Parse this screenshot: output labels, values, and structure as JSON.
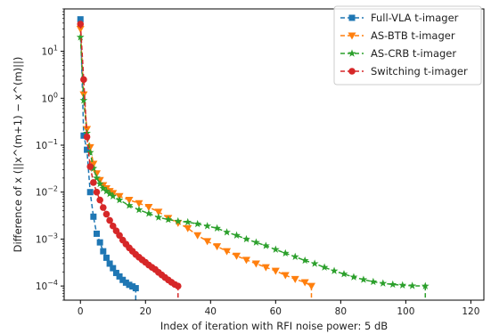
{
  "chart_data": {
    "type": "line",
    "xlabel": "Index of iteration with RFI noise power: 5 dB",
    "ylabel": "Difference of x (||x^(m+1) − x^(m)||)",
    "xlim": [
      -5,
      124
    ],
    "ylim": [
      5e-05,
      80
    ],
    "yscale": "log",
    "xticks": [
      0,
      20,
      40,
      60,
      80,
      100,
      120
    ],
    "yticks": [
      {
        "value": 0.0001,
        "base": "10",
        "exp": "−4"
      },
      {
        "value": 0.001,
        "base": "10",
        "exp": "−3"
      },
      {
        "value": 0.01,
        "base": "10",
        "exp": "−2"
      },
      {
        "value": 0.1,
        "base": "10",
        "exp": "−1"
      },
      {
        "value": 1,
        "base": "10",
        "exp": "0"
      },
      {
        "value": 10,
        "base": "10",
        "exp": "1"
      }
    ],
    "grid": false,
    "legend_position": "top-right",
    "series": [
      {
        "name": "Full-VLA t-imager",
        "color": "#1f77b4",
        "marker": "square",
        "x": [
          0,
          1,
          2,
          3,
          4,
          5,
          6,
          7,
          8,
          9,
          10,
          11,
          12,
          13,
          14,
          15,
          16,
          17
        ],
        "y": [
          48,
          0.16,
          0.08,
          0.01,
          0.003,
          0.0013,
          0.00085,
          0.00055,
          0.0004,
          0.0003,
          0.00024,
          0.00019,
          0.00016,
          0.000135,
          0.000118,
          0.000106,
          9.8e-05,
          9e-05
        ]
      },
      {
        "name": "AS-BTB t-imager",
        "color": "#ff7f0e",
        "marker": "triangle-down",
        "x": [
          0,
          1,
          2,
          3,
          4,
          5,
          6,
          7,
          8,
          9,
          10,
          12,
          15,
          18,
          21,
          24,
          27,
          30,
          33,
          36,
          39,
          42,
          45,
          48,
          51,
          54,
          57,
          60,
          63,
          66,
          69,
          71
        ],
        "y": [
          30,
          1.2,
          0.22,
          0.09,
          0.04,
          0.025,
          0.018,
          0.014,
          0.012,
          0.0105,
          0.0095,
          0.0082,
          0.0068,
          0.0058,
          0.0048,
          0.0038,
          0.0028,
          0.0022,
          0.0017,
          0.0012,
          0.0009,
          0.0007,
          0.00055,
          0.00044,
          0.00036,
          0.0003,
          0.00025,
          0.00021,
          0.00017,
          0.00014,
          0.00012,
          0.0001
        ]
      },
      {
        "name": "AS-CRB t-imager",
        "color": "#2ca02c",
        "marker": "star",
        "x": [
          0,
          1,
          2,
          3,
          4,
          5,
          6,
          7,
          8,
          9,
          10,
          12,
          15,
          18,
          21,
          24,
          27,
          30,
          33,
          36,
          39,
          42,
          45,
          48,
          51,
          54,
          57,
          60,
          63,
          66,
          69,
          72,
          75,
          78,
          81,
          84,
          87,
          90,
          93,
          96,
          99,
          102,
          106
        ],
        "y": [
          20,
          0.9,
          0.18,
          0.07,
          0.032,
          0.02,
          0.015,
          0.012,
          0.0105,
          0.0092,
          0.0082,
          0.0068,
          0.0052,
          0.0042,
          0.0035,
          0.0029,
          0.0026,
          0.0024,
          0.0023,
          0.0021,
          0.0019,
          0.0017,
          0.0014,
          0.0012,
          0.001,
          0.00085,
          0.00072,
          0.0006,
          0.0005,
          0.00042,
          0.00035,
          0.0003,
          0.00025,
          0.00021,
          0.00018,
          0.000155,
          0.000137,
          0.000123,
          0.000114,
          0.000108,
          0.000104,
          0.000101,
          0.0001
        ]
      },
      {
        "name": "Switching t-imager",
        "color": "#d62728",
        "marker": "circle",
        "x": [
          0,
          1,
          2,
          3,
          4,
          5,
          6,
          7,
          8,
          9,
          10,
          11,
          12,
          13,
          14,
          15,
          16,
          17,
          18,
          19,
          20,
          21,
          22,
          23,
          24,
          25,
          26,
          27,
          28,
          29,
          30
        ],
        "y": [
          38,
          2.5,
          0.15,
          0.035,
          0.016,
          0.01,
          0.0068,
          0.0047,
          0.0034,
          0.0025,
          0.0019,
          0.0015,
          0.0012,
          0.00095,
          0.00078,
          0.00065,
          0.00055,
          0.00047,
          0.00041,
          0.00036,
          0.00032,
          0.00028,
          0.00025,
          0.000225,
          0.000195,
          0.000172,
          0.000152,
          0.000135,
          0.00012,
          0.000108,
          0.0001
        ]
      }
    ]
  }
}
